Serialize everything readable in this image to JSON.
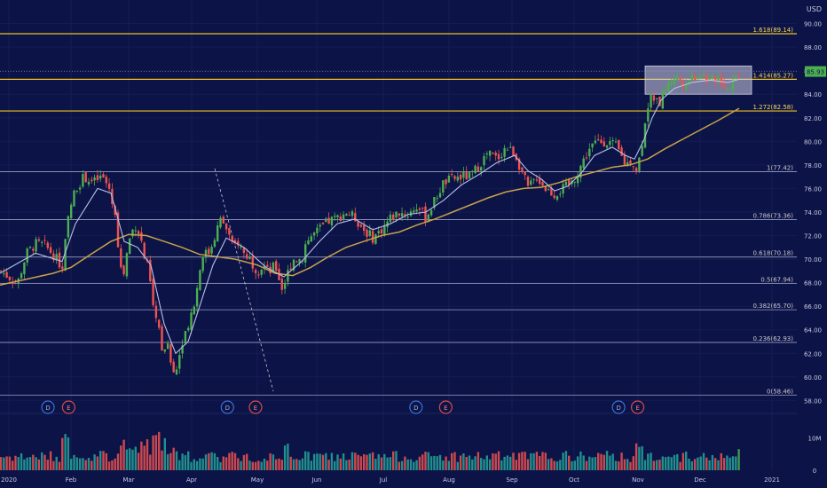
{
  "currency": "USD",
  "chart_data": {
    "type": "candlestick",
    "currency": "USD",
    "ylim": [
      57.5,
      92
    ],
    "y_ticks": [
      58,
      60,
      62,
      64,
      66,
      68,
      70,
      72,
      74,
      76,
      78,
      80,
      82,
      84,
      86,
      88,
      90
    ],
    "x_ticks": [
      "2020",
      "Feb",
      "Mar",
      "Apr",
      "May",
      "Jun",
      "Jul",
      "Aug",
      "Sep",
      "Oct",
      "Nov",
      "Dec",
      "2021"
    ],
    "last_price": "85.93",
    "fib_levels": [
      {
        "label": "0(58.46)",
        "value": 58.46,
        "color": "#c8c8c8"
      },
      {
        "label": "0.236(62.93)",
        "value": 62.93,
        "color": "#c8c8c8"
      },
      {
        "label": "0.382(65.70)",
        "value": 65.7,
        "color": "#c8c8c8"
      },
      {
        "label": "0.5(67.94)",
        "value": 67.94,
        "color": "#c8c8c8"
      },
      {
        "label": "0.618(70.18)",
        "value": 70.18,
        "color": "#c8c8c8"
      },
      {
        "label": "0.786(73.36)",
        "value": 73.36,
        "color": "#c8c8c8"
      },
      {
        "label": "1(77.42)",
        "value": 77.42,
        "color": "#c8c8c8"
      },
      {
        "label": "1.272(82.58)",
        "value": 82.58,
        "color": "#f0c020"
      },
      {
        "label": "1.414(85.27)",
        "value": 85.27,
        "color": "#f0c020"
      },
      {
        "label": "1.618(89.14)",
        "value": 89.14,
        "color": "#f0c020"
      }
    ],
    "price_path": [
      [
        0,
        69.0
      ],
      [
        10,
        68.5
      ],
      [
        20,
        68.0
      ],
      [
        30,
        70.5
      ],
      [
        40,
        71.3
      ],
      [
        50,
        71.2
      ],
      [
        60,
        70.4
      ],
      [
        70,
        69.3
      ],
      [
        78,
        74.0
      ],
      [
        85,
        76.0
      ],
      [
        95,
        77.0
      ],
      [
        105,
        76.5
      ],
      [
        115,
        77.0
      ],
      [
        123,
        76.0
      ],
      [
        130,
        73.5
      ],
      [
        138,
        68.0
      ],
      [
        145,
        71.5
      ],
      [
        152,
        73.0
      ],
      [
        158,
        72.0
      ],
      [
        163,
        70.0
      ],
      [
        168,
        69.0
      ],
      [
        172,
        66.0
      ],
      [
        178,
        65.0
      ],
      [
        183,
        62.0
      ],
      [
        188,
        63.0
      ],
      [
        193,
        61.0
      ],
      [
        197,
        60.0
      ],
      [
        200,
        61.0
      ],
      [
        205,
        63.0
      ],
      [
        212,
        64.5
      ],
      [
        220,
        66.5
      ],
      [
        228,
        70.5
      ],
      [
        235,
        70.5
      ],
      [
        242,
        72.0
      ],
      [
        248,
        73.3
      ],
      [
        253,
        73.0
      ],
      [
        258,
        72.0
      ],
      [
        262,
        71.0
      ],
      [
        268,
        71.5
      ],
      [
        275,
        70.5
      ],
      [
        282,
        70.0
      ],
      [
        290,
        69.0
      ],
      [
        297,
        69.5
      ],
      [
        303,
        68.8
      ],
      [
        310,
        69.5
      ],
      [
        318,
        67.5
      ],
      [
        322,
        68.3
      ],
      [
        330,
        70.0
      ],
      [
        340,
        70.0
      ],
      [
        345,
        71.5
      ],
      [
        352,
        72.0
      ],
      [
        360,
        72.5
      ],
      [
        370,
        73.2
      ],
      [
        380,
        73.5
      ],
      [
        390,
        74.0
      ],
      [
        400,
        73.5
      ],
      [
        410,
        72.5
      ],
      [
        420,
        71.8
      ],
      [
        430,
        72.5
      ],
      [
        440,
        73.5
      ],
      [
        450,
        74.0
      ],
      [
        460,
        73.8
      ],
      [
        470,
        74.5
      ],
      [
        480,
        73.5
      ],
      [
        490,
        75.0
      ],
      [
        500,
        76.5
      ],
      [
        510,
        76.8
      ],
      [
        520,
        77.0
      ],
      [
        530,
        77.0
      ],
      [
        540,
        78.0
      ],
      [
        550,
        79.0
      ],
      [
        560,
        78.5
      ],
      [
        570,
        79.5
      ],
      [
        580,
        79.0
      ],
      [
        588,
        77.5
      ],
      [
        595,
        76.0
      ],
      [
        605,
        77.0
      ],
      [
        615,
        76.0
      ],
      [
        625,
        75.5
      ],
      [
        635,
        76.0
      ],
      [
        645,
        76.5
      ],
      [
        655,
        78.0
      ],
      [
        665,
        79.5
      ],
      [
        675,
        80.0
      ],
      [
        685,
        80.0
      ],
      [
        695,
        79.5
      ],
      [
        705,
        78.0
      ],
      [
        712,
        78.5
      ],
      [
        717,
        77.5
      ],
      [
        722,
        79.0
      ],
      [
        728,
        82.5
      ],
      [
        735,
        84.0
      ],
      [
        742,
        83.0
      ],
      [
        750,
        84.5
      ],
      [
        760,
        85.5
      ],
      [
        770,
        85.0
      ],
      [
        780,
        85.5
      ],
      [
        790,
        85.8
      ],
      [
        800,
        85.0
      ],
      [
        810,
        85.5
      ],
      [
        820,
        84.5
      ],
      [
        830,
        85.6
      ],
      [
        835,
        85.93
      ]
    ],
    "sma_fast_path": [
      [
        0,
        68.8
      ],
      [
        40,
        70.5
      ],
      [
        70,
        69.8
      ],
      [
        85,
        73.0
      ],
      [
        110,
        76.0
      ],
      [
        125,
        75.6
      ],
      [
        140,
        71.5
      ],
      [
        155,
        71.0
      ],
      [
        170,
        69.5
      ],
      [
        185,
        64.5
      ],
      [
        198,
        62.0
      ],
      [
        212,
        63.0
      ],
      [
        225,
        66.0
      ],
      [
        240,
        69.5
      ],
      [
        255,
        71.8
      ],
      [
        275,
        71.0
      ],
      [
        300,
        69.3
      ],
      [
        320,
        68.5
      ],
      [
        340,
        69.8
      ],
      [
        360,
        71.5
      ],
      [
        380,
        73.0
      ],
      [
        400,
        73.4
      ],
      [
        420,
        72.5
      ],
      [
        440,
        73.0
      ],
      [
        460,
        73.8
      ],
      [
        480,
        74.0
      ],
      [
        500,
        75.0
      ],
      [
        520,
        76.3
      ],
      [
        540,
        77.2
      ],
      [
        560,
        78.2
      ],
      [
        580,
        78.8
      ],
      [
        595,
        77.5
      ],
      [
        610,
        76.8
      ],
      [
        625,
        75.8
      ],
      [
        640,
        76.2
      ],
      [
        655,
        77.3
      ],
      [
        670,
        78.8
      ],
      [
        690,
        79.5
      ],
      [
        705,
        78.8
      ],
      [
        715,
        78.5
      ],
      [
        725,
        80.0
      ],
      [
        735,
        82.0
      ],
      [
        745,
        83.5
      ],
      [
        760,
        84.5
      ],
      [
        780,
        85.0
      ],
      [
        800,
        85.2
      ],
      [
        820,
        85.0
      ],
      [
        835,
        85.3
      ]
    ],
    "sma_slow_path": [
      [
        0,
        67.8
      ],
      [
        30,
        68.3
      ],
      [
        60,
        68.8
      ],
      [
        80,
        69.3
      ],
      [
        100,
        70.3
      ],
      [
        125,
        71.5
      ],
      [
        145,
        72.1
      ],
      [
        165,
        72.0
      ],
      [
        185,
        71.5
      ],
      [
        205,
        71.0
      ],
      [
        225,
        70.4
      ],
      [
        245,
        70.2
      ],
      [
        265,
        70.0
      ],
      [
        290,
        69.5
      ],
      [
        310,
        68.8
      ],
      [
        330,
        68.6
      ],
      [
        350,
        69.3
      ],
      [
        370,
        70.2
      ],
      [
        390,
        71.0
      ],
      [
        410,
        71.5
      ],
      [
        430,
        72.0
      ],
      [
        450,
        72.3
      ],
      [
        470,
        72.9
      ],
      [
        490,
        73.4
      ],
      [
        510,
        74.0
      ],
      [
        530,
        74.6
      ],
      [
        550,
        75.2
      ],
      [
        570,
        75.7
      ],
      [
        590,
        76.0
      ],
      [
        610,
        76.1
      ],
      [
        630,
        76.5
      ],
      [
        650,
        77.0
      ],
      [
        670,
        77.4
      ],
      [
        690,
        77.8
      ],
      [
        710,
        78.0
      ],
      [
        730,
        78.5
      ],
      [
        750,
        79.4
      ],
      [
        770,
        80.2
      ],
      [
        790,
        81.0
      ],
      [
        810,
        81.8
      ],
      [
        833,
        82.8
      ]
    ],
    "volume_axis": {
      "ylim": [
        0,
        15
      ],
      "ticks": [
        {
          "label": "10M",
          "value": 10
        },
        {
          "label": "0",
          "value": 0
        }
      ]
    },
    "event_markers": [
      {
        "label": "D",
        "x_frac": 0.058
      },
      {
        "label": "E",
        "x_frac": 0.083
      },
      {
        "label": "D",
        "x_frac": 0.275
      },
      {
        "label": "E",
        "x_frac": 0.309
      },
      {
        "label": "D",
        "x_frac": 0.503
      },
      {
        "label": "E",
        "x_frac": 0.539
      },
      {
        "label": "D",
        "x_frac": 0.748
      },
      {
        "label": "E",
        "x_frac": 0.771
      }
    ],
    "colors": {
      "background": "#0c1347",
      "up": "#26a69a",
      "up_bright": "#4caf50",
      "down": "#ef5350",
      "volume_up": "#26a69a",
      "volume_down": "#ef5350",
      "volume_last": "#4caf50",
      "sma_fast": "#b8c0e8",
      "sma_slow": "#c9a24a",
      "fib_major": "#f0c020",
      "fib_minor": "#c8c8c8",
      "last_price": "#4caf50",
      "marker_d": "#3c6fd0",
      "marker_e": "#d54a48"
    }
  }
}
